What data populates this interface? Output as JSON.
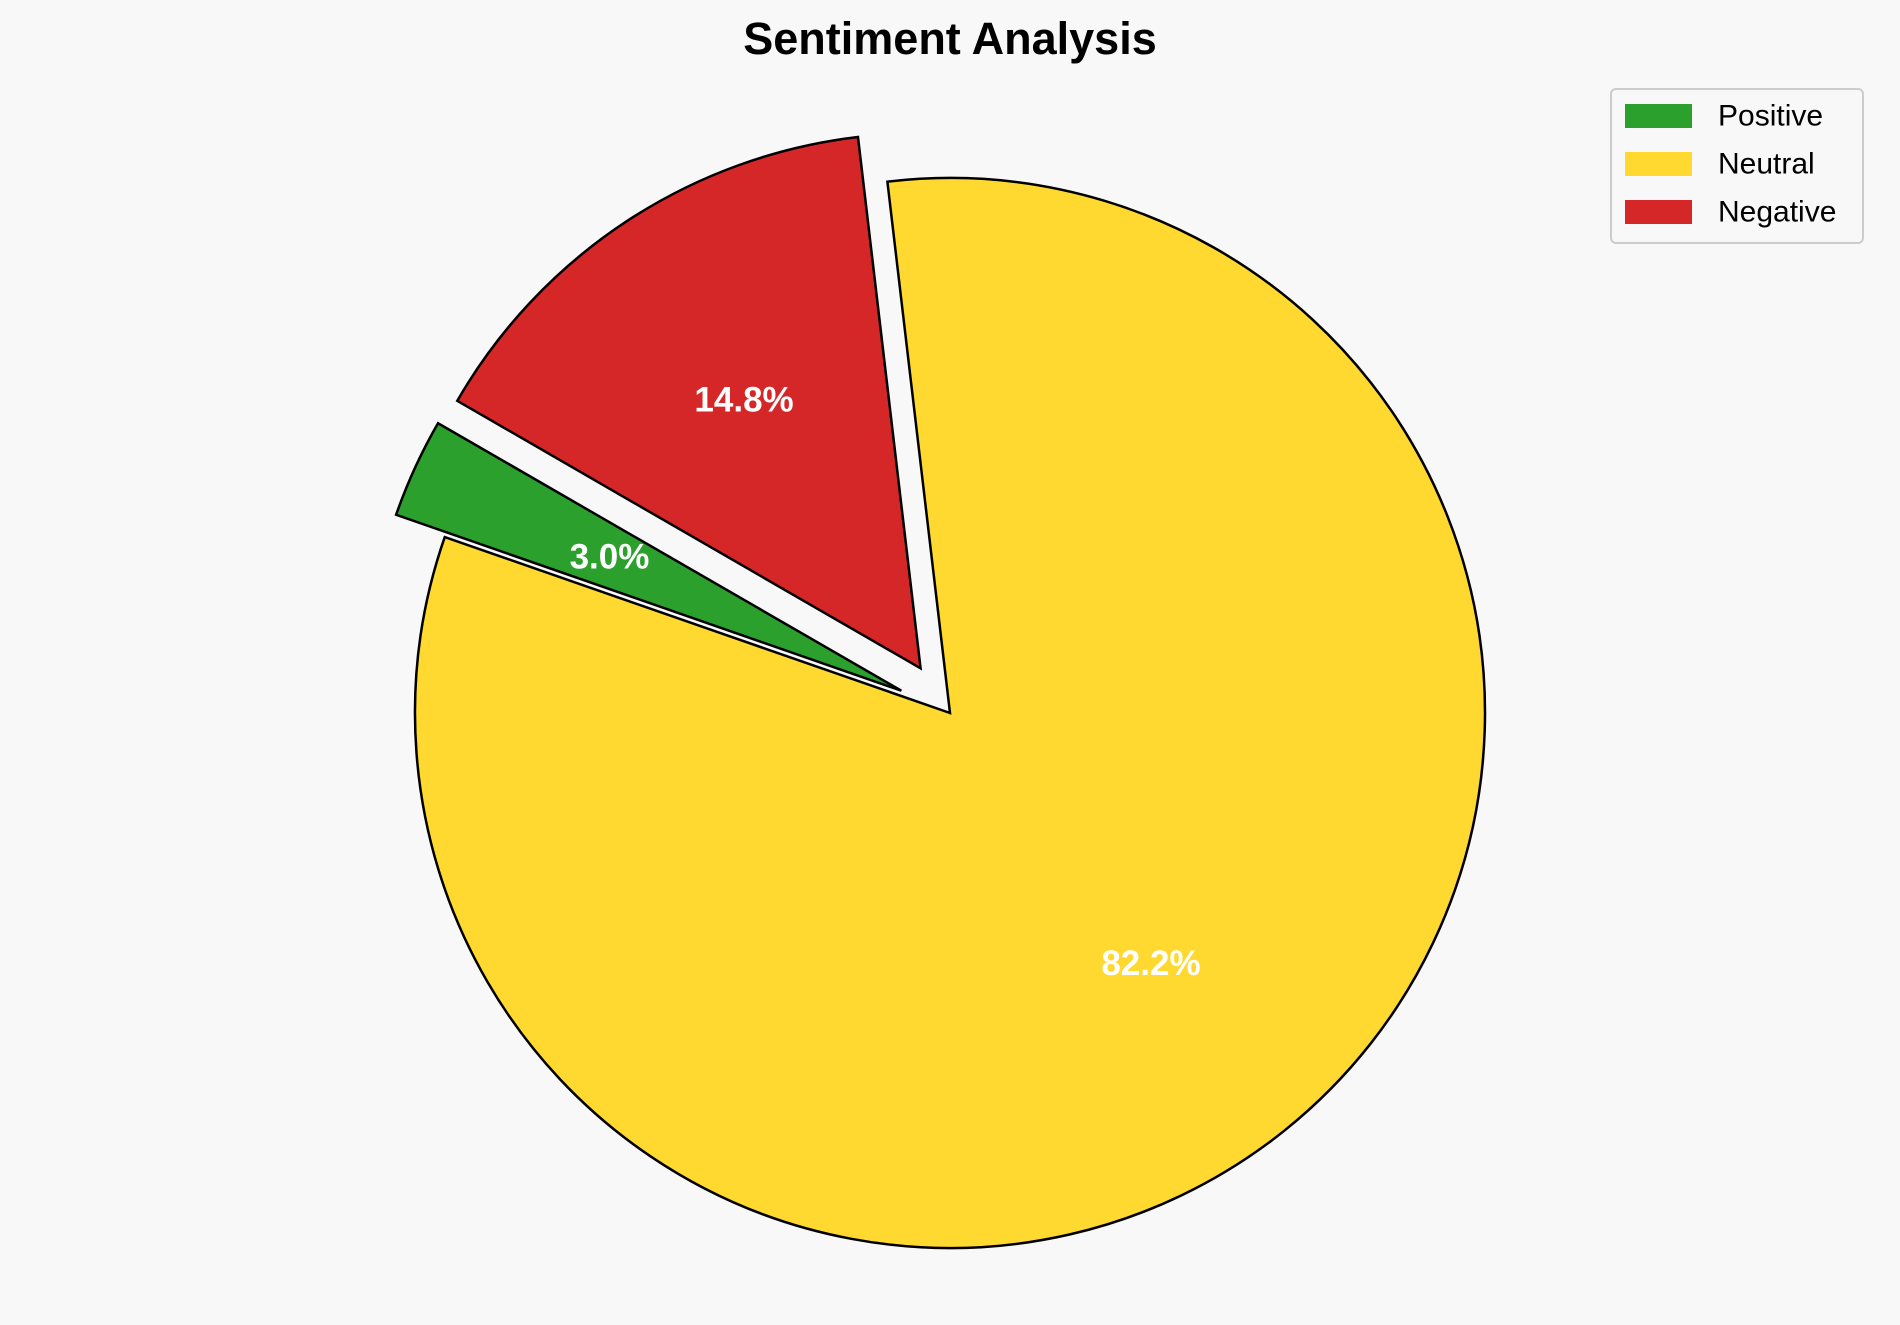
{
  "chart_data": {
    "type": "pie",
    "title": "Sentiment Analysis",
    "categories": [
      "Positive",
      "Neutral",
      "Negative"
    ],
    "values": [
      3.0,
      82.2,
      14.8
    ],
    "labels": [
      "3.0%",
      "82.2%",
      "14.8%"
    ],
    "colors": [
      "#2ca02c",
      "#ffd92f",
      "#d62728"
    ],
    "exploded": [
      true,
      false,
      true
    ],
    "start_angle_deg": 150,
    "direction": "counterclockwise",
    "edge_color": "#000000",
    "legend_position": "top-right"
  }
}
